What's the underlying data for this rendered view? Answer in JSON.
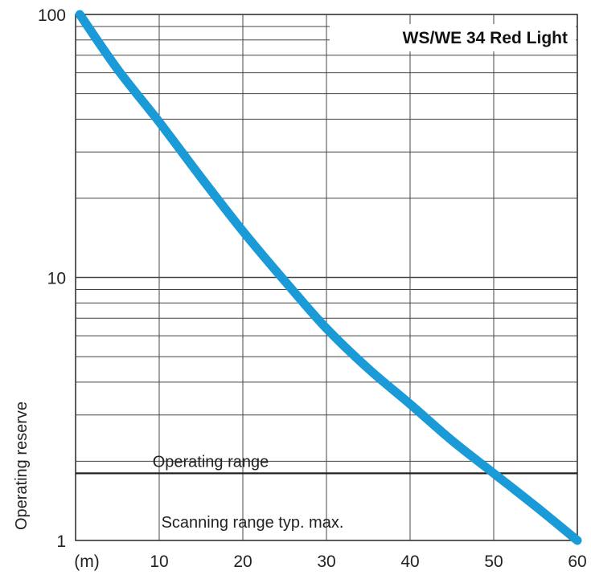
{
  "chart_data": {
    "type": "line",
    "title": "WS/WE 34 Red Light",
    "xlabel": "",
    "ylabel": "Operating reserve",
    "x_unit_label": "(m)",
    "xlim": [
      0,
      60
    ],
    "ylim": [
      1,
      100
    ],
    "yscale": "log",
    "x_ticks": [
      10,
      20,
      30,
      40,
      50,
      60
    ],
    "x_tick_labels": [
      "10",
      "20",
      "30",
      "40",
      "50",
      "60"
    ],
    "y_ticks": [
      1,
      10,
      100
    ],
    "y_tick_labels": [
      "1",
      "10",
      "100"
    ],
    "grid": true,
    "series": [
      {
        "color": "#1a9ad6",
        "x": [
          0.5,
          5,
          10,
          15,
          20,
          25,
          30,
          35,
          40,
          45,
          50,
          55,
          60
        ],
        "y": [
          100,
          62,
          39,
          24,
          15,
          9.7,
          6.4,
          4.5,
          3.3,
          2.4,
          1.8,
          1.35,
          1.0
        ]
      }
    ],
    "reference_line": {
      "y": 1.8,
      "color": "#222222"
    },
    "annotations": {
      "operating_range": "Operating range",
      "scanning_range": "Scanning range typ. max."
    }
  }
}
